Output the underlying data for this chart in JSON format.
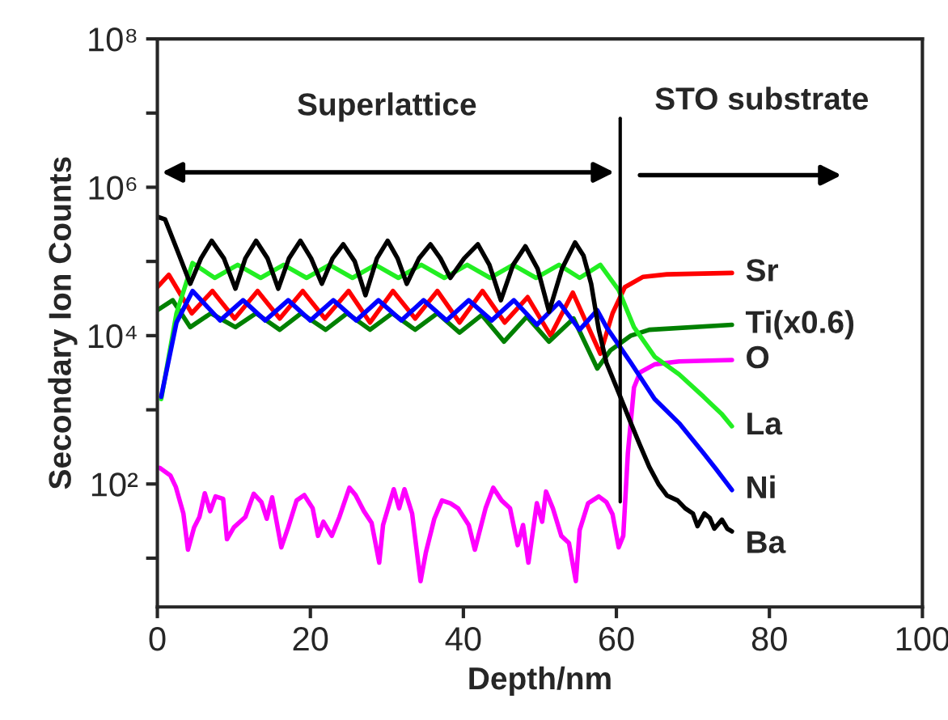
{
  "chart_data": {
    "type": "line",
    "xlabel": "Depth/nm",
    "ylabel": "Secondary Ion Counts",
    "log": "y",
    "xlim": [
      0,
      100
    ],
    "xticks": [
      0,
      20,
      40,
      60,
      80,
      100
    ],
    "ylim": [
      2.2,
      100000000
    ],
    "yticks": [
      {
        "value": 10,
        "label": null
      },
      {
        "value": 100,
        "label": "10²"
      },
      {
        "value": 1000,
        "label": null
      },
      {
        "value": 10000,
        "label": "10⁴"
      },
      {
        "value": 100000,
        "label": null
      },
      {
        "value": 1000000,
        "label": "10⁶"
      },
      {
        "value": 10000000,
        "label": null
      },
      {
        "value": 100000000,
        "label": "10⁸"
      }
    ],
    "grid": false,
    "legend": false,
    "marker": "none",
    "line_style": "solid",
    "annotations": [
      "Superlattice",
      "STO substrate"
    ],
    "ref_lines": [
      {
        "axis": "x",
        "value": 60.5,
        "color": "#000000"
      }
    ],
    "series": [
      {
        "name": "Sr",
        "color": "#ff0000",
        "x": [
          0,
          1.5,
          4.5,
          7.2,
          10.1,
          13.1,
          16,
          19,
          21.9,
          25,
          27.8,
          30.8,
          33.7,
          36.6,
          39.5,
          42.5,
          45.4,
          48.4,
          51.4,
          54.3,
          57.9,
          59.5,
          61.1,
          63.5,
          66.6,
          75.1
        ],
        "values": [
          45000,
          66000,
          20000,
          40000,
          17000,
          40000,
          17000,
          40000,
          17000,
          40000,
          15000,
          40000,
          17000,
          40000,
          15000,
          40000,
          15000,
          33000,
          10000,
          38000,
          5700,
          20000,
          45000,
          62000,
          67000,
          70000
        ]
      },
      {
        "name": "Ti(x0.6)",
        "color": "#008000",
        "x": [
          0,
          2,
          4.3,
          7,
          10.2,
          12.9,
          16,
          18.8,
          22,
          24.8,
          27.8,
          30.7,
          33.7,
          36.6,
          39.5,
          42.4,
          45.3,
          48.3,
          51.2,
          54.4,
          57.5,
          59.2,
          61.9,
          64.3,
          75.1
        ],
        "values": [
          22000,
          30000,
          13000,
          20000,
          13000,
          20000,
          12000,
          20000,
          12000,
          20000,
          12000,
          20000,
          12000,
          20000,
          11000,
          19000,
          8300,
          18000,
          8300,
          17000,
          3600,
          6300,
          10000,
          12000,
          14000
        ]
      },
      {
        "name": "O",
        "color": "#ff00ff",
        "x": [
          0.3,
          1.7,
          2.4,
          3.4,
          4.0,
          4.8,
          5.5,
          6.2,
          6.9,
          7.6,
          8.6,
          9.1,
          10,
          11.5,
          12.6,
          13.6,
          14.3,
          15,
          16.2,
          17.1,
          18.2,
          19.2,
          20.3,
          21,
          21.7,
          22.8,
          23.8,
          25.1,
          25.9,
          27,
          28,
          29,
          29.5,
          30.9,
          31.6,
          32.3,
          33.3,
          34.4,
          35.1,
          36.2,
          37.2,
          38.3,
          39.3,
          40.7,
          41.5,
          42.9,
          43.9,
          45,
          46.1,
          47.1,
          47.8,
          48.5,
          49.6,
          50.3,
          50.8,
          51.7,
          52.8,
          53.8,
          54.7,
          55.2,
          56.3,
          57.7,
          58.7,
          59.5,
          60.3,
          60.9,
          61.5,
          62.3,
          63.1,
          65,
          68.2,
          75.1
        ],
        "values": [
          165,
          130,
          92,
          40,
          13,
          26,
          36,
          75,
          43,
          68,
          63,
          18,
          26,
          36,
          74,
          57,
          34,
          66,
          14,
          26,
          60,
          71,
          47,
          20,
          31,
          20,
          36,
          89,
          71,
          43,
          30,
          8.7,
          28,
          85,
          47,
          85,
          40,
          4.9,
          12,
          34,
          60,
          55,
          47,
          28,
          13,
          47,
          89,
          60,
          47,
          15,
          28,
          8.7,
          55,
          31,
          79,
          47,
          20,
          16,
          4.9,
          24,
          55,
          68,
          57,
          39,
          14,
          20,
          260,
          2000,
          3200,
          4100,
          4500,
          4700
        ]
      },
      {
        "name": "La",
        "color": "#22ee22",
        "x": [
          0.5,
          2.5,
          4.6,
          7.5,
          10.5,
          13.5,
          16.5,
          19.5,
          22.5,
          25.5,
          28.5,
          31.5,
          34.5,
          37.5,
          40.5,
          43.5,
          46.5,
          49.5,
          52.5,
          55.2,
          57.9,
          60.3,
          62.3,
          65,
          68.2,
          71.4,
          73.8,
          75.1
        ],
        "values": [
          1400,
          20000,
          95000,
          60000,
          90000,
          60000,
          90000,
          60000,
          90000,
          60000,
          90000,
          60000,
          90000,
          60000,
          90000,
          60000,
          90000,
          60000,
          90000,
          60000,
          90000,
          41000,
          13000,
          5200,
          3000,
          1500,
          870,
          600
        ]
      },
      {
        "name": "Ni",
        "color": "#0000ff",
        "x": [
          0.5,
          2.5,
          4.6,
          8.2,
          11.2,
          14.1,
          17.1,
          20,
          23,
          26,
          28.9,
          31.9,
          34.8,
          37.8,
          40.7,
          43.7,
          46.6,
          49.6,
          52.5,
          55.2,
          57.5,
          58.7,
          61.9,
          65,
          68.2,
          71.4,
          73,
          75.1
        ],
        "values": [
          1500,
          15000,
          40000,
          16000,
          30000,
          16000,
          30000,
          16000,
          30000,
          16000,
          30000,
          16000,
          30000,
          16000,
          30000,
          16000,
          30000,
          14000,
          28000,
          12000,
          22000,
          13000,
          4300,
          1400,
          660,
          260,
          160,
          83
        ]
      },
      {
        "name": "Ba",
        "color": "#000000",
        "x": [
          0,
          1,
          2.5,
          4.3,
          5.7,
          7.1,
          8.7,
          10.2,
          11.5,
          12.9,
          14.4,
          15.8,
          17.2,
          18.7,
          20.1,
          21.5,
          22.9,
          24.3,
          25.8,
          27.2,
          28.7,
          30.1,
          31.4,
          32.6,
          34.2,
          35.7,
          37,
          38.3,
          40.1,
          41.9,
          43.4,
          44.9,
          46.5,
          48.1,
          49.7,
          51.2,
          52.9,
          54.6,
          55.7,
          56.7,
          57.7,
          58.7,
          60.3,
          61.9,
          63,
          64.3,
          65.5,
          66.6,
          68,
          69,
          70,
          70.6,
          71.5,
          72.2,
          72.8,
          73.8,
          74.5,
          75.1
        ],
        "values": [
          400000,
          370000,
          150000,
          50000,
          110000,
          190000,
          110000,
          43000,
          110000,
          190000,
          110000,
          43000,
          110000,
          190000,
          110000,
          50000,
          110000,
          170000,
          100000,
          35000,
          110000,
          190000,
          110000,
          50000,
          110000,
          170000,
          110000,
          60000,
          110000,
          170000,
          90000,
          30000,
          90000,
          160000,
          80000,
          21000,
          80000,
          180000,
          120000,
          50000,
          12000,
          4300,
          1700,
          660,
          350,
          170,
          100,
          70,
          60,
          47,
          40,
          27,
          40,
          35,
          25,
          33,
          25,
          23
        ]
      }
    ]
  }
}
